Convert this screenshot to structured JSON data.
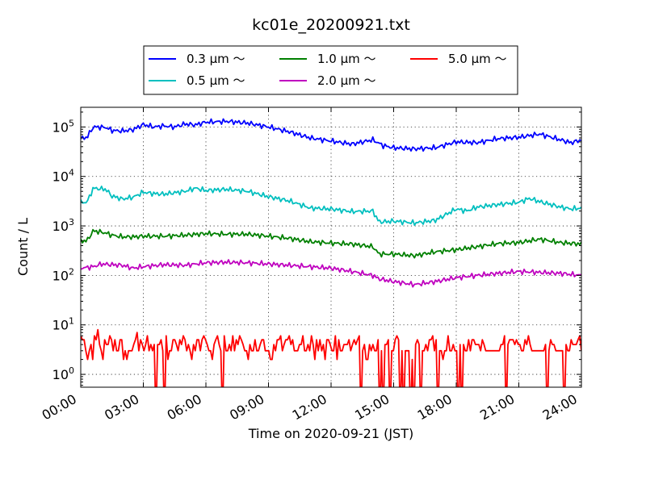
{
  "chart_data": {
    "type": "line",
    "title": "kc01e_20200921.txt",
    "xlabel": "Time on 2020-09-21 (JST)",
    "ylabel": "Count / L",
    "xlim_hours": [
      0,
      24
    ],
    "ylim": [
      0.55,
      250000
    ],
    "yscale": "log",
    "grid": true,
    "legend_placement": "top-center",
    "x_ticks": [
      "00:00",
      "03:00",
      "06:00",
      "09:00",
      "12:00",
      "15:00",
      "18:00",
      "21:00",
      "24:00"
    ],
    "y_ticks": [
      {
        "value": 1,
        "base": "10",
        "exp": "0"
      },
      {
        "value": 10,
        "base": "10",
        "exp": "1"
      },
      {
        "value": 100,
        "base": "10",
        "exp": "2"
      },
      {
        "value": 1000,
        "base": "10",
        "exp": "3"
      },
      {
        "value": 10000,
        "base": "10",
        "exp": "4"
      },
      {
        "value": 100000,
        "base": "10",
        "exp": "5"
      }
    ],
    "series": [
      {
        "name": "0.3 μm ～",
        "color": "#0000ff",
        "anchors": [
          [
            0,
            58000
          ],
          [
            0.3,
            62000
          ],
          [
            0.6,
            100000
          ],
          [
            1.2,
            98000
          ],
          [
            1.5,
            85000
          ],
          [
            2,
            83000
          ],
          [
            2.5,
            88000
          ],
          [
            3,
            112000
          ],
          [
            3.5,
            100000
          ],
          [
            4,
            105000
          ],
          [
            4.5,
            100000
          ],
          [
            5,
            115000
          ],
          [
            5.5,
            110000
          ],
          [
            6,
            125000
          ],
          [
            7,
            130000
          ],
          [
            8,
            120000
          ],
          [
            9,
            100000
          ],
          [
            10,
            80000
          ],
          [
            11,
            60000
          ],
          [
            12,
            52000
          ],
          [
            13,
            45000
          ],
          [
            14,
            55000
          ],
          [
            14.5,
            42000
          ],
          [
            15,
            38000
          ],
          [
            16,
            36000
          ],
          [
            17,
            38000
          ],
          [
            18,
            50000
          ],
          [
            19,
            48000
          ],
          [
            20,
            58000
          ],
          [
            21,
            62000
          ],
          [
            22,
            72000
          ],
          [
            23,
            55000
          ],
          [
            23.5,
            48000
          ],
          [
            24,
            55000
          ]
        ]
      },
      {
        "name": "0.5 μm ～",
        "color": "#00bfbf",
        "anchors": [
          [
            0,
            3000
          ],
          [
            0.3,
            3000
          ],
          [
            0.6,
            5800
          ],
          [
            1.2,
            5500
          ],
          [
            1.5,
            4000
          ],
          [
            2,
            3500
          ],
          [
            2.5,
            3800
          ],
          [
            3,
            4800
          ],
          [
            3.5,
            4500
          ],
          [
            4,
            4400
          ],
          [
            5,
            5000
          ],
          [
            5.5,
            5800
          ],
          [
            6,
            5200
          ],
          [
            7,
            5500
          ],
          [
            8,
            5000
          ],
          [
            9,
            3900
          ],
          [
            10,
            3200
          ],
          [
            11,
            2300
          ],
          [
            12,
            2200
          ],
          [
            13,
            1950
          ],
          [
            14,
            2000
          ],
          [
            14.3,
            1200
          ],
          [
            15,
            1250
          ],
          [
            16,
            1150
          ],
          [
            17,
            1300
          ],
          [
            18,
            2200
          ],
          [
            18.5,
            2000
          ],
          [
            19,
            2400
          ],
          [
            20,
            2700
          ],
          [
            21,
            3000
          ],
          [
            21.5,
            3600
          ],
          [
            22,
            3100
          ],
          [
            23,
            2400
          ],
          [
            23.5,
            2200
          ],
          [
            24,
            2300
          ]
        ]
      },
      {
        "name": "1.0 μm ～",
        "color": "#008000",
        "anchors": [
          [
            0,
            500
          ],
          [
            0.3,
            500
          ],
          [
            0.6,
            800
          ],
          [
            1.2,
            720
          ],
          [
            1.5,
            650
          ],
          [
            2,
            600
          ],
          [
            2.5,
            600
          ],
          [
            3,
            620
          ],
          [
            4,
            620
          ],
          [
            5,
            650
          ],
          [
            6,
            700
          ],
          [
            7,
            680
          ],
          [
            8,
            680
          ],
          [
            9,
            620
          ],
          [
            10,
            560
          ],
          [
            11,
            480
          ],
          [
            12,
            450
          ],
          [
            13,
            430
          ],
          [
            14,
            380
          ],
          [
            14.3,
            270
          ],
          [
            15,
            270
          ],
          [
            16,
            250
          ],
          [
            17,
            300
          ],
          [
            18,
            330
          ],
          [
            19,
            380
          ],
          [
            20,
            440
          ],
          [
            21,
            460
          ],
          [
            22,
            540
          ],
          [
            23,
            460
          ],
          [
            24,
            430
          ]
        ]
      },
      {
        "name": "2.0 μm ～",
        "color": "#bf00bf",
        "anchors": [
          [
            0,
            140
          ],
          [
            0.6,
            150
          ],
          [
            1,
            170
          ],
          [
            2,
            160
          ],
          [
            2.5,
            140
          ],
          [
            3,
            150
          ],
          [
            4,
            165
          ],
          [
            5,
            160
          ],
          [
            6,
            180
          ],
          [
            7,
            185
          ],
          [
            8,
            180
          ],
          [
            9,
            170
          ],
          [
            10,
            160
          ],
          [
            11,
            150
          ],
          [
            12,
            140
          ],
          [
            13,
            120
          ],
          [
            14,
            100
          ],
          [
            14.3,
            85
          ],
          [
            15,
            75
          ],
          [
            16,
            65
          ],
          [
            17,
            75
          ],
          [
            18,
            90
          ],
          [
            19,
            100
          ],
          [
            20,
            110
          ],
          [
            21,
            120
          ],
          [
            22,
            115
          ],
          [
            23,
            110
          ],
          [
            24,
            100
          ]
        ]
      },
      {
        "name": "5.0 μm ～",
        "color": "#ff0000",
        "samples": [
          6,
          5,
          5,
          3,
          2,
          3,
          4,
          2,
          6,
          5,
          8,
          4,
          3,
          2,
          5,
          4,
          4,
          6,
          5,
          3,
          5,
          3,
          3,
          5,
          5,
          2,
          3,
          2,
          3,
          3,
          3,
          4,
          5,
          7,
          3,
          5,
          4,
          3,
          4,
          6,
          3,
          4,
          3,
          4,
          5,
          4,
          4,
          5,
          3,
          4,
          6,
          2,
          3,
          3,
          5,
          5,
          4,
          3,
          5,
          4,
          6,
          5,
          3,
          4,
          3,
          2,
          4,
          3,
          5,
          5,
          3,
          5,
          6,
          5,
          4,
          3,
          3,
          2,
          4,
          5,
          6,
          4,
          3,
          3,
          6,
          3,
          3,
          4,
          3,
          6,
          3,
          5,
          4,
          6,
          5,
          4,
          3,
          3,
          2,
          4,
          3,
          3,
          5,
          3,
          3,
          4,
          5,
          5,
          3,
          3,
          3,
          2,
          2,
          4,
          3,
          5,
          5,
          6,
          3,
          4,
          5,
          5,
          6,
          4,
          5,
          3,
          3,
          3,
          4,
          4,
          6,
          3,
          3,
          4,
          3,
          6,
          4,
          2,
          5,
          3,
          5,
          3,
          4,
          2,
          5,
          5,
          4,
          3,
          3,
          6,
          2,
          5,
          3,
          3,
          4,
          4,
          4,
          5,
          3,
          4,
          5,
          4,
          5,
          6,
          3,
          3,
          4,
          2,
          2,
          4,
          3,
          4,
          3,
          3,
          5,
          5,
          3,
          4,
          4,
          4,
          5,
          6,
          3,
          3,
          5,
          6,
          5,
          3,
          3,
          4,
          3,
          3,
          3,
          6,
          2,
          3,
          4,
          5,
          4,
          5,
          3,
          3,
          4,
          3,
          5,
          5,
          6,
          3,
          5,
          4,
          3,
          3,
          2,
          3,
          3,
          6,
          3,
          3,
          4,
          3,
          3,
          3,
          4,
          5,
          4,
          3,
          3,
          5,
          3,
          5,
          5,
          4,
          4,
          4,
          3,
          5,
          4,
          3,
          3,
          3,
          3,
          3,
          3,
          3,
          3,
          3,
          4,
          4,
          6,
          4,
          4,
          5,
          5,
          5,
          4,
          5,
          4,
          4,
          3,
          3,
          5,
          4,
          6,
          4,
          3,
          3,
          3,
          3,
          3,
          3,
          3,
          3,
          4,
          3,
          3,
          5,
          4,
          4,
          3,
          3,
          3,
          3,
          3,
          3,
          4,
          3,
          3,
          5,
          4,
          4,
          4,
          5,
          6,
          3
        ],
        "zero_hours": [
          3.6,
          4.0,
          6.8,
          13.4,
          14.3,
          14.5,
          14.8,
          15.3,
          15.5,
          15.8,
          16.0,
          16.3,
          17.1,
          18.1,
          18.3,
          20.4,
          22.4,
          23.2
        ]
      }
    ]
  }
}
